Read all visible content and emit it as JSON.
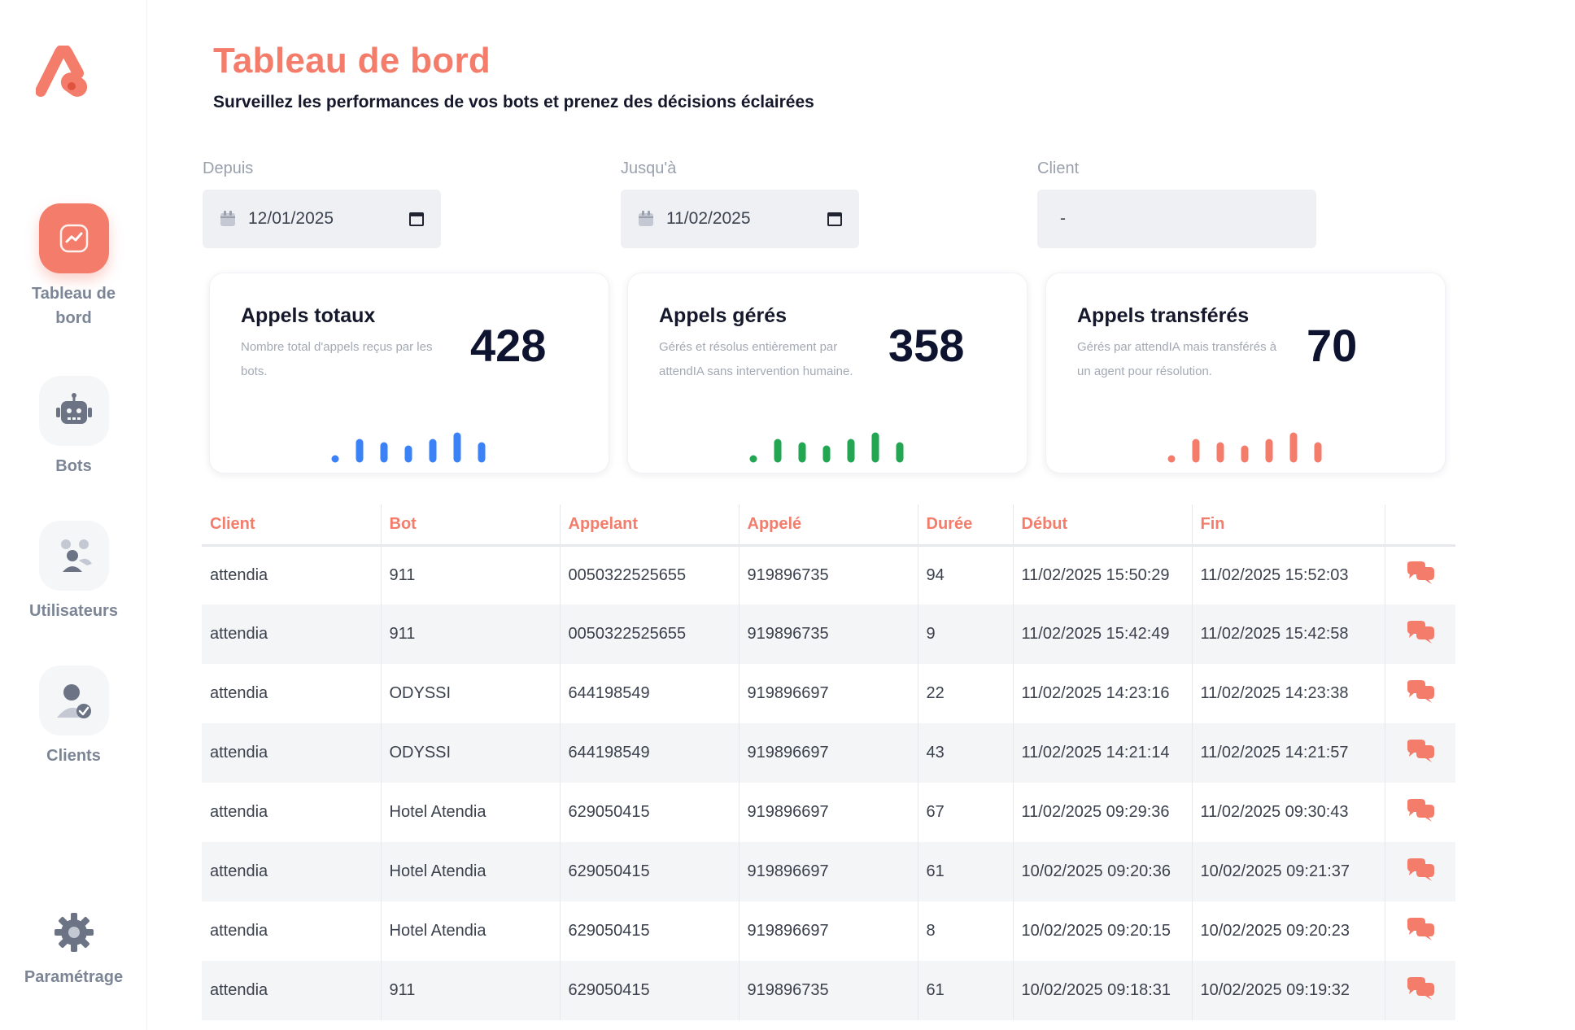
{
  "sidebar": {
    "items": [
      {
        "label": "Tableau de bord",
        "icon": "trend-chart-icon",
        "active": true
      },
      {
        "label": "Bots",
        "icon": "robot-icon"
      },
      {
        "label": "Utilisateurs",
        "icon": "users-icon"
      },
      {
        "label": "Clients",
        "icon": "client-check-icon"
      },
      {
        "label": "Paramétrage",
        "icon": "gear-icon"
      }
    ]
  },
  "header": {
    "title": "Tableau de bord",
    "subtitle": "Surveillez les performances de vos bots et prenez des décisions éclairées"
  },
  "filters": {
    "from": {
      "label": "Depuis",
      "value": "12/01/2025"
    },
    "to": {
      "label": "Jusqu'à",
      "value": "11/02/2025"
    },
    "client": {
      "label": "Client",
      "value": "-"
    }
  },
  "cards": [
    {
      "title": "Appels totaux",
      "description": "Nombre total d'appels reçus par les bots.",
      "value": "428",
      "color": "#3b82f6"
    },
    {
      "title": "Appels gérés",
      "description": "Gérés et résolus entièrement par attendIA sans intervention humaine.",
      "value": "358",
      "color": "#22a652"
    },
    {
      "title": "Appels transférés",
      "description": "Gérés par attendIA mais transférés à un agent pour résolution.",
      "value": "70",
      "color": "#f47c6b"
    }
  ],
  "colors": {
    "accent": "#f47c6b"
  },
  "table": {
    "headers": [
      "Client",
      "Bot",
      "Appelant",
      "Appelé",
      "Durée",
      "Début",
      "Fin",
      ""
    ],
    "rows": [
      [
        "attendia",
        "911",
        "0050322525655",
        "919896735",
        "94",
        "11/02/2025 15:50:29",
        "11/02/2025 15:52:03"
      ],
      [
        "attendia",
        "911",
        "0050322525655",
        "919896735",
        "9",
        "11/02/2025 15:42:49",
        "11/02/2025 15:42:58"
      ],
      [
        "attendia",
        "ODYSSI",
        "644198549",
        "919896697",
        "22",
        "11/02/2025 14:23:16",
        "11/02/2025 14:23:38"
      ],
      [
        "attendia",
        "ODYSSI",
        "644198549",
        "919896697",
        "43",
        "11/02/2025 14:21:14",
        "11/02/2025 14:21:57"
      ],
      [
        "attendia",
        "Hotel Atendia",
        "629050415",
        "919896697",
        "67",
        "11/02/2025 09:29:36",
        "11/02/2025 09:30:43"
      ],
      [
        "attendia",
        "Hotel Atendia",
        "629050415",
        "919896697",
        "61",
        "10/02/2025 09:20:36",
        "10/02/2025 09:21:37"
      ],
      [
        "attendia",
        "Hotel Atendia",
        "629050415",
        "919896697",
        "8",
        "10/02/2025 09:20:15",
        "10/02/2025 09:20:23"
      ],
      [
        "attendia",
        "911",
        "629050415",
        "919896735",
        "61",
        "10/02/2025 09:18:31",
        "10/02/2025 09:19:32"
      ]
    ]
  }
}
